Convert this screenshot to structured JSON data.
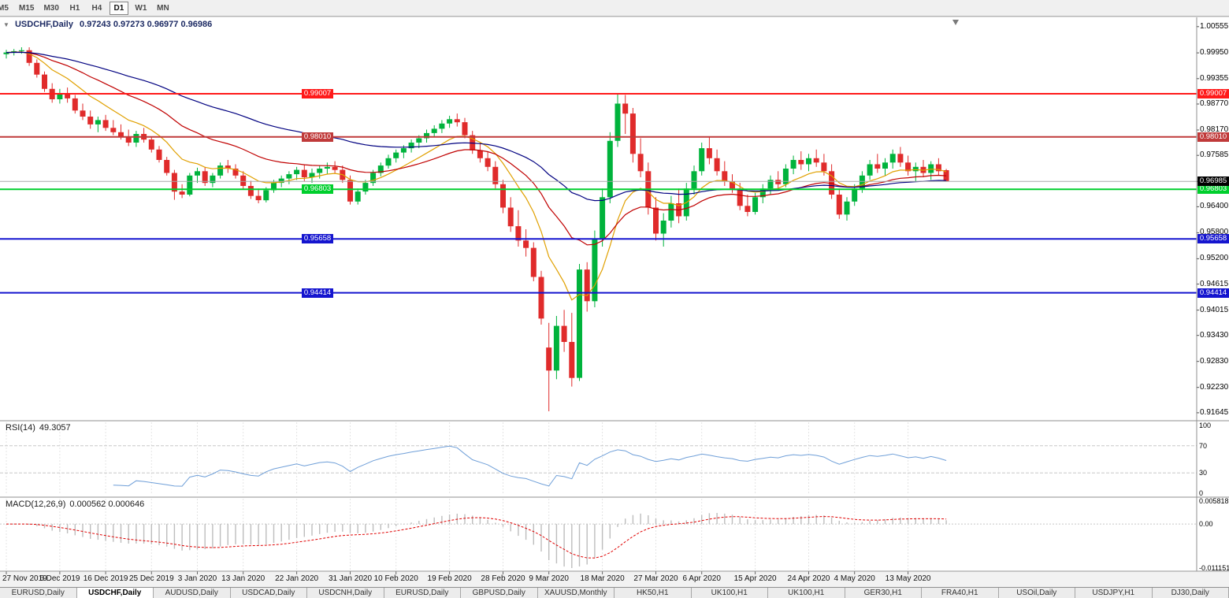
{
  "toolbar": {
    "timeframes": [
      "M5",
      "M15",
      "M30",
      "H1",
      "H4",
      "D1",
      "W1",
      "MN"
    ],
    "active_timeframe": "D1"
  },
  "chart_header": {
    "expander_icon": "▼",
    "symbol": "USDCHF,Daily",
    "ohlc_text": "0.97243 0.97273 0.96977 0.96986"
  },
  "price_axis": {
    "labels": [
      "1.00555",
      "0.99950",
      "0.99355",
      "0.98770",
      "0.98170",
      "0.97585",
      "0.96985",
      "0.96400",
      "0.95800",
      "0.95200",
      "0.94615",
      "0.94015",
      "0.93430",
      "0.92830",
      "0.92230",
      "0.91645"
    ]
  },
  "current_price": {
    "label": "0.96985",
    "value": 0.96985,
    "badge_color": "#000000",
    "line_color": "#a8a8a8"
  },
  "hlines": [
    {
      "label": "0.99007",
      "value": 0.99007,
      "color": "#ff1a1a",
      "width": 2
    },
    {
      "label": "0.98010",
      "value": 0.9801,
      "color": "#c03a3a",
      "width": 2
    },
    {
      "label": "0.96803",
      "value": 0.96803,
      "color": "#00cf2d",
      "width": 2
    },
    {
      "label": "0.95658",
      "value": 0.95658,
      "color": "#1515cf",
      "width": 2
    },
    {
      "label": "0.94414",
      "value": 0.94414,
      "color": "#1515cf",
      "width": 2
    }
  ],
  "chart_data": {
    "type": "candlestick",
    "symbol": "USDCHF",
    "timeframe": "Daily",
    "title": "USDCHF,Daily",
    "y_range": [
      0.9148,
      1.0077
    ],
    "up_color": "#00b33c",
    "down_color": "#e02b2b",
    "overlays": [
      {
        "name": "ma-fast",
        "period": 10,
        "color": "#e0a000"
      },
      {
        "name": "ma-mid",
        "period": 25,
        "color": "#c00000"
      },
      {
        "name": "ma-slow",
        "period": 55,
        "color": "#000080"
      }
    ],
    "x_ticks": [
      {
        "i": 0,
        "label": "27 Nov 2019"
      },
      {
        "i": 7,
        "label": "6 Dec 2019"
      },
      {
        "i": 13,
        "label": "16 Dec 2019"
      },
      {
        "i": 19,
        "label": "25 Dec 2019"
      },
      {
        "i": 25,
        "label": "3 Jan 2020"
      },
      {
        "i": 31,
        "label": "13 Jan 2020"
      },
      {
        "i": 38,
        "label": "22 Jan 2020"
      },
      {
        "i": 45,
        "label": "31 Jan 2020"
      },
      {
        "i": 51,
        "label": "10 Feb 2020"
      },
      {
        "i": 58,
        "label": "19 Feb 2020"
      },
      {
        "i": 65,
        "label": "28 Feb 2020"
      },
      {
        "i": 71,
        "label": "9 Mar 2020"
      },
      {
        "i": 78,
        "label": "18 Mar 2020"
      },
      {
        "i": 85,
        "label": "27 Mar 2020"
      },
      {
        "i": 91,
        "label": "6 Apr 2020"
      },
      {
        "i": 98,
        "label": "15 Apr 2020"
      },
      {
        "i": 105,
        "label": "24 Apr 2020"
      },
      {
        "i": 111,
        "label": "4 May 2020"
      },
      {
        "i": 118,
        "label": "13 May 2020"
      }
    ],
    "candles": [
      [
        0.9992,
        1.0002,
        0.9982,
        0.9996
      ],
      [
        0.9996,
        1.0004,
        0.9989,
        0.9999
      ],
      [
        0.9999,
        1.0008,
        0.9993,
        1.0001
      ],
      [
        1.0001,
        1.0008,
        0.9965,
        0.9972
      ],
      [
        0.9972,
        0.998,
        0.9938,
        0.9945
      ],
      [
        0.9945,
        0.9952,
        0.9905,
        0.9912
      ],
      [
        0.9912,
        0.9925,
        0.988,
        0.9888
      ],
      [
        0.9888,
        0.9912,
        0.9878,
        0.9902
      ],
      [
        0.9902,
        0.9915,
        0.988,
        0.989
      ],
      [
        0.989,
        0.9898,
        0.9855,
        0.9862
      ],
      [
        0.9862,
        0.9878,
        0.984,
        0.9848
      ],
      [
        0.9848,
        0.9862,
        0.982,
        0.983
      ],
      [
        0.983,
        0.9848,
        0.9812,
        0.984
      ],
      [
        0.984,
        0.9852,
        0.9815,
        0.9822
      ],
      [
        0.9822,
        0.984,
        0.9805,
        0.9812
      ],
      [
        0.9812,
        0.983,
        0.9795,
        0.9802
      ],
      [
        0.9802,
        0.9818,
        0.978,
        0.9788
      ],
      [
        0.9788,
        0.9815,
        0.9778,
        0.9808
      ],
      [
        0.9808,
        0.9822,
        0.9788,
        0.9795
      ],
      [
        0.9795,
        0.9802,
        0.9765,
        0.9772
      ],
      [
        0.9772,
        0.978,
        0.9742,
        0.9748
      ],
      [
        0.9748,
        0.9755,
        0.9712,
        0.9718
      ],
      [
        0.9718,
        0.9725,
        0.9656,
        0.9675
      ],
      [
        0.9675,
        0.9692,
        0.966,
        0.9668
      ],
      [
        0.9668,
        0.9718,
        0.9664,
        0.9712
      ],
      [
        0.9712,
        0.973,
        0.9695,
        0.9722
      ],
      [
        0.9722,
        0.9732,
        0.9688,
        0.9695
      ],
      [
        0.9695,
        0.9718,
        0.9685,
        0.9712
      ],
      [
        0.9712,
        0.9742,
        0.9705,
        0.9735
      ],
      [
        0.9735,
        0.9748,
        0.9718,
        0.9728
      ],
      [
        0.9728,
        0.9738,
        0.9705,
        0.9712
      ],
      [
        0.9712,
        0.9722,
        0.968,
        0.9688
      ],
      [
        0.9688,
        0.97,
        0.9658,
        0.9665
      ],
      [
        0.9665,
        0.9682,
        0.9648,
        0.9655
      ],
      [
        0.9655,
        0.9685,
        0.965,
        0.9678
      ],
      [
        0.9678,
        0.9702,
        0.9672,
        0.9695
      ],
      [
        0.9695,
        0.9712,
        0.9685,
        0.9705
      ],
      [
        0.9705,
        0.9722,
        0.9692,
        0.9715
      ],
      [
        0.9715,
        0.9732,
        0.9702,
        0.9725
      ],
      [
        0.9725,
        0.9738,
        0.9698,
        0.9708
      ],
      [
        0.9708,
        0.9728,
        0.9695,
        0.9718
      ],
      [
        0.9718,
        0.9735,
        0.9705,
        0.9728
      ],
      [
        0.9728,
        0.9742,
        0.9715,
        0.9732
      ],
      [
        0.9732,
        0.9745,
        0.9718,
        0.9725
      ],
      [
        0.9725,
        0.9735,
        0.9695,
        0.9702
      ],
      [
        0.9702,
        0.9712,
        0.9645,
        0.9652
      ],
      [
        0.9652,
        0.9682,
        0.9645,
        0.9675
      ],
      [
        0.9675,
        0.9702,
        0.9668,
        0.9695
      ],
      [
        0.9695,
        0.9725,
        0.9688,
        0.9718
      ],
      [
        0.9718,
        0.9742,
        0.971,
        0.9735
      ],
      [
        0.9735,
        0.976,
        0.9728,
        0.9752
      ],
      [
        0.9752,
        0.9772,
        0.9742,
        0.9765
      ],
      [
        0.9765,
        0.9782,
        0.9752,
        0.9775
      ],
      [
        0.9775,
        0.9795,
        0.9765,
        0.9788
      ],
      [
        0.9788,
        0.9805,
        0.9775,
        0.9798
      ],
      [
        0.9798,
        0.9818,
        0.9788,
        0.981
      ],
      [
        0.981,
        0.9828,
        0.98,
        0.982
      ],
      [
        0.982,
        0.984,
        0.981,
        0.9832
      ],
      [
        0.9832,
        0.985,
        0.9822,
        0.9842
      ],
      [
        0.9842,
        0.9855,
        0.9825,
        0.9835
      ],
      [
        0.9835,
        0.9845,
        0.9798,
        0.9805
      ],
      [
        0.9805,
        0.9815,
        0.9762,
        0.977
      ],
      [
        0.977,
        0.9788,
        0.9742,
        0.9752
      ],
      [
        0.9752,
        0.9768,
        0.9722,
        0.9732
      ],
      [
        0.9732,
        0.9745,
        0.9682,
        0.9692
      ],
      [
        0.9692,
        0.9702,
        0.9625,
        0.9638
      ],
      [
        0.9638,
        0.9662,
        0.9582,
        0.9595
      ],
      [
        0.9595,
        0.9632,
        0.9548,
        0.9562
      ],
      [
        0.9562,
        0.9588,
        0.9525,
        0.9545
      ],
      [
        0.9545,
        0.9558,
        0.9468,
        0.9478
      ],
      [
        0.9478,
        0.9492,
        0.9368,
        0.9382
      ],
      [
        0.9315,
        0.9372,
        0.9168,
        0.9262
      ],
      [
        0.9262,
        0.9388,
        0.9242,
        0.9365
      ],
      [
        0.9365,
        0.9402,
        0.9305,
        0.9328
      ],
      [
        0.9328,
        0.9395,
        0.9225,
        0.9245
      ],
      [
        0.9245,
        0.9508,
        0.9238,
        0.9495
      ],
      [
        0.9495,
        0.9512,
        0.9398,
        0.9422
      ],
      [
        0.9422,
        0.9585,
        0.9408,
        0.9565
      ],
      [
        0.9565,
        0.9682,
        0.9548,
        0.9662
      ],
      [
        0.9662,
        0.9812,
        0.9648,
        0.9792
      ],
      [
        0.9792,
        0.9902,
        0.9778,
        0.9878
      ],
      [
        0.9878,
        0.9898,
        0.9808,
        0.9855
      ],
      [
        0.9855,
        0.9868,
        0.9742,
        0.9762
      ],
      [
        0.9762,
        0.9798,
        0.9708,
        0.9722
      ],
      [
        0.9722,
        0.9742,
        0.9622,
        0.9638
      ],
      [
        0.9638,
        0.9662,
        0.9562,
        0.9578
      ],
      [
        0.9578,
        0.9625,
        0.9548,
        0.9608
      ],
      [
        0.9608,
        0.9665,
        0.9592,
        0.9648
      ],
      [
        0.9648,
        0.9682,
        0.9602,
        0.9618
      ],
      [
        0.9618,
        0.9695,
        0.9608,
        0.9682
      ],
      [
        0.9682,
        0.9735,
        0.9668,
        0.9722
      ],
      [
        0.9722,
        0.9788,
        0.9712,
        0.9775
      ],
      [
        0.9775,
        0.9802,
        0.9738,
        0.9752
      ],
      [
        0.9752,
        0.9772,
        0.9712,
        0.9722
      ],
      [
        0.9722,
        0.9745,
        0.9688,
        0.9698
      ],
      [
        0.9698,
        0.9715,
        0.9672,
        0.9682
      ],
      [
        0.9682,
        0.9695,
        0.9632,
        0.9642
      ],
      [
        0.9642,
        0.9668,
        0.9618,
        0.9628
      ],
      [
        0.9628,
        0.9672,
        0.9622,
        0.9662
      ],
      [
        0.9662,
        0.9692,
        0.9648,
        0.9682
      ],
      [
        0.9682,
        0.9712,
        0.9668,
        0.9702
      ],
      [
        0.9702,
        0.9722,
        0.9682,
        0.9692
      ],
      [
        0.9692,
        0.9738,
        0.9685,
        0.9728
      ],
      [
        0.9728,
        0.9758,
        0.9715,
        0.9748
      ],
      [
        0.9748,
        0.9768,
        0.9725,
        0.9738
      ],
      [
        0.9738,
        0.9762,
        0.9722,
        0.9752
      ],
      [
        0.9752,
        0.9772,
        0.9732,
        0.9742
      ],
      [
        0.9742,
        0.9762,
        0.9712,
        0.9722
      ],
      [
        0.9722,
        0.9738,
        0.9658,
        0.9668
      ],
      [
        0.9668,
        0.9682,
        0.9612,
        0.9622
      ],
      [
        0.9622,
        0.9662,
        0.9608,
        0.9652
      ],
      [
        0.9652,
        0.9692,
        0.9642,
        0.9682
      ],
      [
        0.9682,
        0.9722,
        0.9672,
        0.9712
      ],
      [
        0.9712,
        0.9748,
        0.9702,
        0.9738
      ],
      [
        0.9738,
        0.9762,
        0.9718,
        0.9728
      ],
      [
        0.9728,
        0.9752,
        0.9712,
        0.9742
      ],
      [
        0.9742,
        0.9772,
        0.9728,
        0.9762
      ],
      [
        0.9762,
        0.9778,
        0.9732,
        0.9742
      ],
      [
        0.9742,
        0.9758,
        0.9712,
        0.9722
      ],
      [
        0.9722,
        0.9742,
        0.9698,
        0.9732
      ],
      [
        0.9732,
        0.9748,
        0.9708,
        0.9718
      ],
      [
        0.9718,
        0.9745,
        0.9702,
        0.9738
      ],
      [
        0.9738,
        0.9752,
        0.9712,
        0.9722
      ],
      [
        0.97243,
        0.97273,
        0.96977,
        0.96986
      ]
    ]
  },
  "rsi_panel": {
    "title": "RSI(14)",
    "value": "49.3057",
    "axis_labels": [
      "100",
      "70",
      "30",
      "0"
    ],
    "levels": [
      70,
      30
    ],
    "range": [
      0,
      100
    ],
    "line_color": "#6f9fd8"
  },
  "macd_panel": {
    "title": "MACD(12,26,9)",
    "values": "0.000562 0.000646",
    "axis_labels": [
      "0.005818",
      "0.00",
      "-0.011151"
    ],
    "range": [
      -0.011151,
      0.005818
    ],
    "hist_color": "#bdbdbd",
    "signal_color": "#e00000"
  },
  "window_tabs": {
    "active_index": 1,
    "items": [
      "EURUSD,Daily",
      "USDCHF,Daily",
      "AUDUSD,Daily",
      "USDCAD,Daily",
      "USDCNH,Daily",
      "EURUSD,Daily",
      "GBPUSD,Daily",
      "XAUUSD,Monthly",
      "HK50,H1",
      "UK100,H1",
      "UK100,H1",
      "GER30,H1",
      "FRA40,H1",
      "USOil,Daily",
      "USDJPY,H1",
      "DJ30,Daily"
    ]
  }
}
